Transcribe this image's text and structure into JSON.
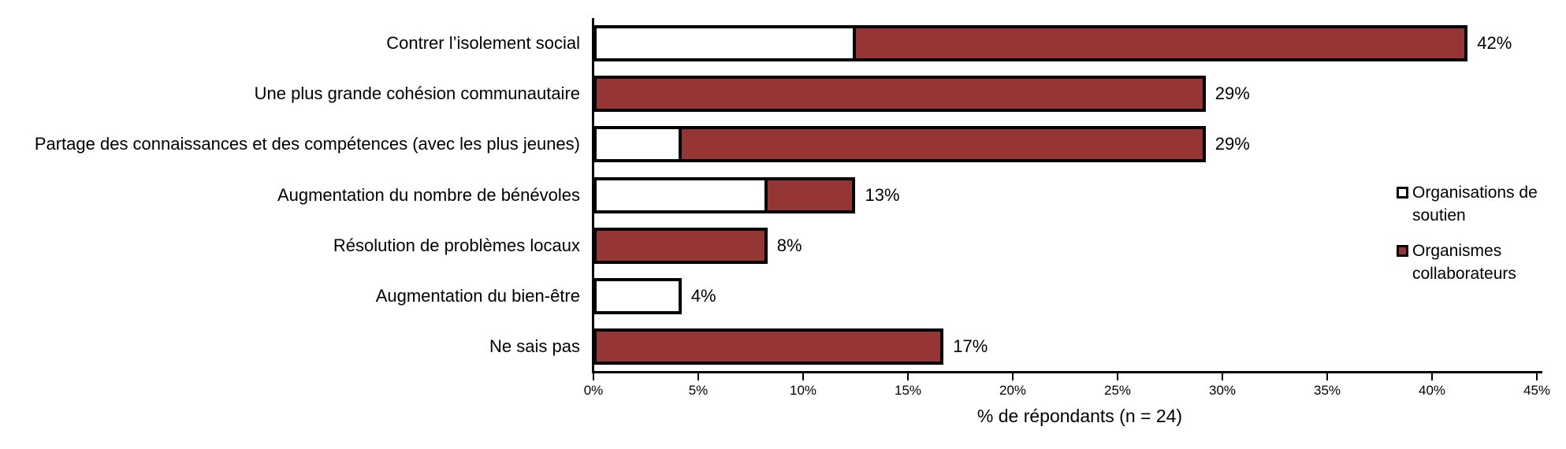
{
  "chart_data": {
    "type": "bar",
    "orientation": "horizontal",
    "stacked": true,
    "xlabel": "% de répondants (n = 24)",
    "xlim": [
      0,
      45
    ],
    "x_tick_step_pct": 5,
    "x_ticks": [
      "0%",
      "5%",
      "10%",
      "15%",
      "20%",
      "25%",
      "30%",
      "35%",
      "40%",
      "45%"
    ],
    "grid": false,
    "legend_position": "right-overlay",
    "bar_border_color": "#000000",
    "background_color": "#FFFFFF",
    "categories": [
      "Contrer l’isolement social",
      "Une plus grande cohésion communautaire",
      "Partage des connaissances et des compétences (avec les plus jeunes)",
      "Augmentation du nombre de bénévoles",
      "Résolution de problèmes locaux",
      "Augmentation du bien-être",
      "Ne sais pas"
    ],
    "series": [
      {
        "name": "Organisations de soutien",
        "color": "#FFFFFF",
        "values": [
          12.5,
          0,
          4.2,
          8.3,
          0,
          4.2,
          0
        ]
      },
      {
        "name": "Organismes collaborateurs",
        "color": "#963634",
        "values": [
          29.2,
          29.2,
          25.0,
          4.2,
          8.3,
          0,
          16.7
        ]
      }
    ],
    "totals": [
      41.7,
      29.2,
      29.2,
      12.5,
      8.3,
      4.2,
      16.7
    ],
    "value_labels": [
      "42%",
      "29%",
      "29%",
      "13%",
      "8%",
      "4%",
      "17%"
    ]
  }
}
